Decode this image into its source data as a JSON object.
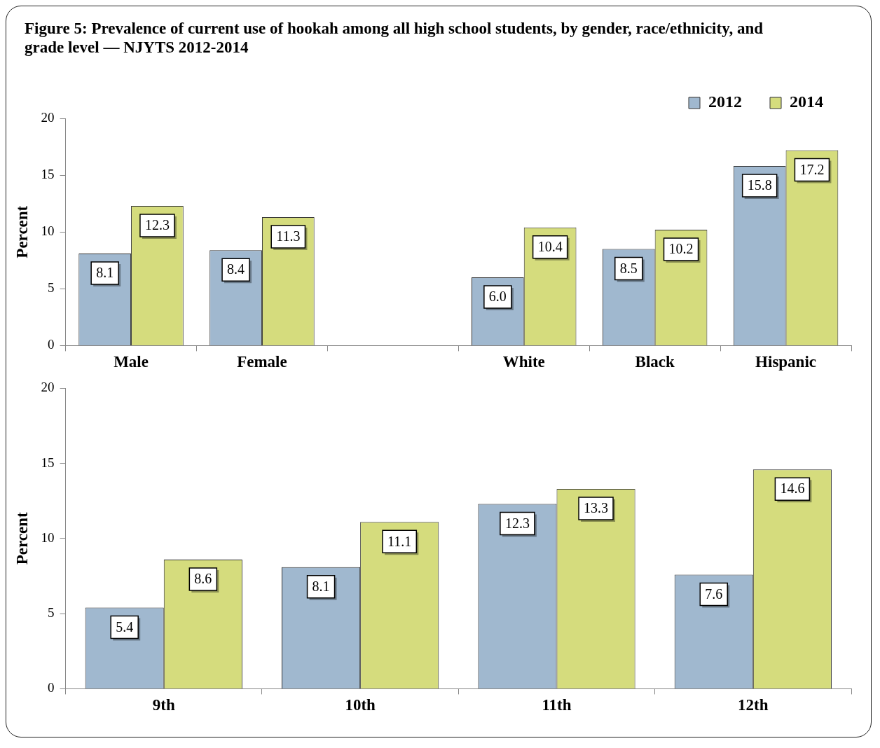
{
  "chart_data": [
    {
      "type": "bar",
      "title": "Figure 5: Prevalence of current use of hookah among all high school students, by gender, race/ethnicity, and grade level — NJYTS 2012-2014",
      "categories": [
        "Male",
        "Female",
        null,
        "White",
        "Black",
        "Hispanic"
      ],
      "series": [
        {
          "name": "2012",
          "color": "#a0b8cf",
          "values": [
            8.1,
            8.4,
            null,
            6.0,
            8.5,
            15.8
          ],
          "value_labels": [
            "8.1",
            "8.4",
            null,
            "6.0",
            "8.5",
            "15.8"
          ]
        },
        {
          "name": "2014",
          "color": "#d5dc7d",
          "values": [
            12.3,
            11.3,
            null,
            10.4,
            10.2,
            17.2
          ],
          "value_labels": [
            "12.3",
            "11.3",
            null,
            "10.4",
            "10.2",
            "17.2"
          ]
        }
      ],
      "ylabel": "Percent",
      "ylim": [
        0,
        20
      ],
      "yticks": [
        0,
        5,
        10,
        15,
        20
      ],
      "legend": "top right"
    },
    {
      "type": "bar",
      "categories": [
        "9th",
        "10th",
        "11th",
        "12th"
      ],
      "series": [
        {
          "color": "#a0b8cf",
          "values": [
            5.4,
            8.1,
            12.3,
            7.6
          ],
          "value_labels": [
            "5.4",
            "8.1",
            "12.3",
            "7.6"
          ]
        },
        {
          "color": "#d5dc7d",
          "values": [
            8.6,
            11.1,
            13.3,
            14.6
          ],
          "value_labels": [
            "8.6",
            "11.1",
            "13.3",
            "14.6"
          ]
        }
      ],
      "ylabel": "Percent",
      "ylim": [
        0,
        20
      ],
      "yticks": [
        0,
        5,
        10,
        15,
        20
      ],
      "legend": false
    }
  ]
}
